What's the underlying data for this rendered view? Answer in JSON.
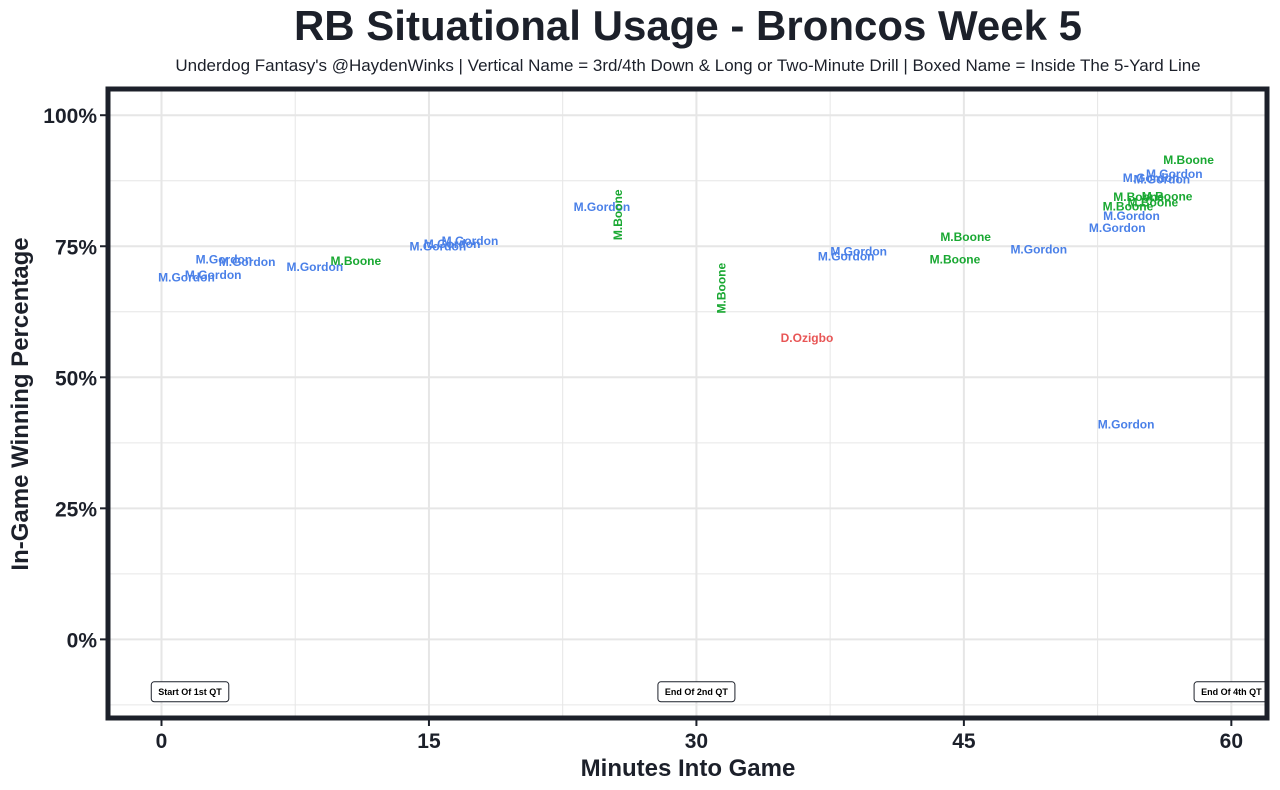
{
  "chart_data": {
    "type": "scatter",
    "title": "RB Situational Usage - Broncos Week 5",
    "subtitle": "Underdog Fantasy's @HaydenWinks | Vertical Name = 3rd/4th Down & Long or Two-Minute Drill | Boxed Name = Inside The 5-Yard Line",
    "xlabel": "Minutes Into Game",
    "ylabel": "In-Game Winning Percentage",
    "xlim": [
      -3,
      62
    ],
    "ylim": [
      -15,
      105
    ],
    "x_ticks": [
      0,
      15,
      30,
      45,
      60
    ],
    "x_tick_labels": [
      "0",
      "15",
      "30",
      "45",
      "60"
    ],
    "y_ticks": [
      0,
      25,
      50,
      75,
      100
    ],
    "y_tick_labels": [
      "0%",
      "25%",
      "50%",
      "75%",
      "100%"
    ],
    "grid": true,
    "colors": {
      "M.Gordon": "#4a80e8",
      "M.Boone": "#19a832",
      "D.Ozigbo": "#e85555",
      "frame": "#1c202a",
      "grid": "#e6e6e6"
    },
    "annotations": [
      {
        "label": "Start Of 1st QT",
        "x": 1.6,
        "y": -10
      },
      {
        "label": "End Of 2nd QT",
        "x": 30,
        "y": -10
      },
      {
        "label": "End Of 4th QT",
        "x": 60,
        "y": -10
      }
    ],
    "points": [
      {
        "player": "M.Gordon",
        "x": 1.4,
        "y": 69,
        "vertical": false
      },
      {
        "player": "M.Gordon",
        "x": 2.9,
        "y": 69.5,
        "vertical": false
      },
      {
        "player": "M.Gordon",
        "x": 3.5,
        "y": 72.5,
        "vertical": false
      },
      {
        "player": "M.Gordon",
        "x": 4.8,
        "y": 72,
        "vertical": false
      },
      {
        "player": "M.Gordon",
        "x": 8.6,
        "y": 71,
        "vertical": false
      },
      {
        "player": "M.Boone",
        "x": 10.9,
        "y": 72.2,
        "vertical": false
      },
      {
        "player": "M.Gordon",
        "x": 15.5,
        "y": 75,
        "vertical": false
      },
      {
        "player": "M.Gordon",
        "x": 16.3,
        "y": 75.4,
        "vertical": false
      },
      {
        "player": "M.Gordon",
        "x": 17.3,
        "y": 76,
        "vertical": false
      },
      {
        "player": "M.Gordon",
        "x": 24.7,
        "y": 82.5,
        "vertical": false
      },
      {
        "player": "M.Boone",
        "x": 25.6,
        "y": 81,
        "vertical": true
      },
      {
        "player": "M.Boone",
        "x": 31.4,
        "y": 67,
        "vertical": true
      },
      {
        "player": "D.Ozigbo",
        "x": 36.2,
        "y": 57.5,
        "vertical": false
      },
      {
        "player": "M.Gordon",
        "x": 39.1,
        "y": 74,
        "vertical": false
      },
      {
        "player": "M.Gordon",
        "x": 38.4,
        "y": 73,
        "vertical": false
      },
      {
        "player": "M.Boone",
        "x": 45.1,
        "y": 76.8,
        "vertical": false
      },
      {
        "player": "M.Boone",
        "x": 44.5,
        "y": 72.5,
        "vertical": false
      },
      {
        "player": "M.Gordon",
        "x": 49.2,
        "y": 74.4,
        "vertical": false
      },
      {
        "player": "M.Gordon",
        "x": 53.6,
        "y": 78.5,
        "vertical": false
      },
      {
        "player": "M.Gordon",
        "x": 54.4,
        "y": 80.8,
        "vertical": false
      },
      {
        "player": "M.Boone",
        "x": 54.2,
        "y": 82.6,
        "vertical": false
      },
      {
        "player": "M.Boone",
        "x": 54.8,
        "y": 84.4,
        "vertical": false
      },
      {
        "player": "M.Boone",
        "x": 55.6,
        "y": 83.3,
        "vertical": false
      },
      {
        "player": "M.Boone",
        "x": 56.4,
        "y": 84.5,
        "vertical": false
      },
      {
        "player": "M.Gordon",
        "x": 55.5,
        "y": 88,
        "vertical": false
      },
      {
        "player": "M.Gordon",
        "x": 56.1,
        "y": 87.7,
        "vertical": false
      },
      {
        "player": "M.Gordon",
        "x": 56.8,
        "y": 88.8,
        "vertical": false
      },
      {
        "player": "M.Boone",
        "x": 57.6,
        "y": 91.5,
        "vertical": false
      },
      {
        "player": "M.Gordon",
        "x": 54.1,
        "y": 41,
        "vertical": false
      }
    ]
  }
}
